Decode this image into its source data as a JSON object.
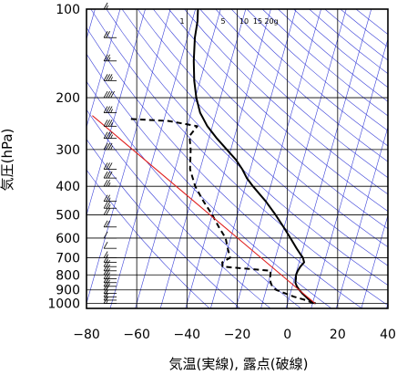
{
  "chart_data": {
    "type": "line",
    "diagram": "skew-t log-p",
    "xlabel": "気温(実線), 露点(破線)",
    "ylabel": "気圧(hPa)",
    "xlim": [
      -80,
      40
    ],
    "ylim": [
      1040,
      100
    ],
    "y_scale": "log",
    "x_ticks": [
      "−80",
      "−60",
      "−40",
      "−20",
      "0",
      "20",
      "40"
    ],
    "y_ticks": [
      "100",
      "200",
      "300",
      "400",
      "500",
      "600",
      "700",
      "800",
      "900",
      "1000"
    ],
    "mixing_ratio_labels": [
      "1",
      "5",
      "10",
      "15",
      "20g"
    ],
    "grid": true,
    "series": [
      {
        "key": "temperature",
        "style": "solid",
        "color": "#000000",
        "points": [
          {
            "p": 1000,
            "t": 11.2
          },
          {
            "p": 990,
            "t": 9.6
          },
          {
            "p": 975,
            "t": 8.4
          },
          {
            "p": 950,
            "t": 6.6
          },
          {
            "p": 925,
            "t": 4.8
          },
          {
            "p": 900,
            "t": 3.2
          },
          {
            "p": 875,
            "t": 1.8
          },
          {
            "p": 850,
            "t": 0.8
          },
          {
            "p": 825,
            "t": 0.6
          },
          {
            "p": 800,
            "t": 0.2
          },
          {
            "p": 775,
            "t": 0.4
          },
          {
            "p": 750,
            "t": 1.0
          },
          {
            "p": 725,
            "t": 2.0
          },
          {
            "p": 700,
            "t": 1.0
          },
          {
            "p": 675,
            "t": -0.8
          },
          {
            "p": 650,
            "t": -2.6
          },
          {
            "p": 600,
            "t": -6.2
          },
          {
            "p": 550,
            "t": -10.2
          },
          {
            "p": 500,
            "t": -14.8
          },
          {
            "p": 450,
            "t": -20.2
          },
          {
            "p": 400,
            "t": -27.0
          },
          {
            "p": 375,
            "t": -30.4
          },
          {
            "p": 350,
            "t": -33.2
          },
          {
            "p": 325,
            "t": -36.8
          },
          {
            "p": 300,
            "t": -41.6
          },
          {
            "p": 275,
            "t": -46.8
          },
          {
            "p": 250,
            "t": -52.0
          },
          {
            "p": 225,
            "t": -56.4
          },
          {
            "p": 200,
            "t": -59.6
          },
          {
            "p": 175,
            "t": -62.4
          },
          {
            "p": 150,
            "t": -64.8
          },
          {
            "p": 125,
            "t": -67.0
          },
          {
            "p": 110,
            "t": -67.8
          },
          {
            "p": 100,
            "t": -69.0
          }
        ]
      },
      {
        "key": "dewpoint",
        "style": "dashed",
        "color": "#000000",
        "points": [
          {
            "p": 1000,
            "t": 10.4
          },
          {
            "p": 975,
            "t": 7.0
          },
          {
            "p": 950,
            "t": 2.0
          },
          {
            "p": 925,
            "t": -2.0
          },
          {
            "p": 900,
            "t": -6.0
          },
          {
            "p": 875,
            "t": -8.0
          },
          {
            "p": 850,
            "t": -9.0
          },
          {
            "p": 825,
            "t": -9.8
          },
          {
            "p": 800,
            "t": -10.0
          },
          {
            "p": 775,
            "t": -10.4
          },
          {
            "p": 750,
            "t": -30.0
          },
          {
            "p": 725,
            "t": -30.6
          },
          {
            "p": 700,
            "t": -28.0
          },
          {
            "p": 650,
            "t": -30.0
          },
          {
            "p": 600,
            "t": -32.0
          },
          {
            "p": 550,
            "t": -36.0
          },
          {
            "p": 500,
            "t": -40.0
          },
          {
            "p": 450,
            "t": -45.0
          },
          {
            "p": 400,
            "t": -50.0
          },
          {
            "p": 350,
            "t": -54.0
          },
          {
            "p": 300,
            "t": -56.0
          },
          {
            "p": 270,
            "t": -58.0
          },
          {
            "p": 250,
            "t": -56.0
          },
          {
            "p": 240,
            "t": -68.0
          },
          {
            "p": 236,
            "t": -84.0
          }
        ]
      },
      {
        "key": "reference",
        "style": "solid",
        "color": "#e02020",
        "points": [
          {
            "p": 1000,
            "t": 11.0
          },
          {
            "p": 230,
            "t": -99.0
          }
        ]
      }
    ],
    "wind_barbs": {
      "t_position": -68.0,
      "levels": [
        {
          "p": 1000,
          "speed": 15,
          "dir": 270
        },
        {
          "p": 975,
          "speed": 15,
          "dir": 270
        },
        {
          "p": 950,
          "speed": 15,
          "dir": 270
        },
        {
          "p": 925,
          "speed": 15,
          "dir": 270
        },
        {
          "p": 900,
          "speed": 20,
          "dir": 270
        },
        {
          "p": 875,
          "speed": 20,
          "dir": 270
        },
        {
          "p": 850,
          "speed": 20,
          "dir": 270
        },
        {
          "p": 825,
          "speed": 20,
          "dir": 270
        },
        {
          "p": 800,
          "speed": 20,
          "dir": 270
        },
        {
          "p": 775,
          "speed": 20,
          "dir": 270
        },
        {
          "p": 750,
          "speed": 20,
          "dir": 270
        },
        {
          "p": 725,
          "speed": 15,
          "dir": 270
        },
        {
          "p": 700,
          "speed": 15,
          "dir": 270
        },
        {
          "p": 650,
          "speed": 10,
          "dir": 270
        },
        {
          "p": 600,
          "speed": 10,
          "dir": 270
        },
        {
          "p": 550,
          "speed": 20,
          "dir": 270
        },
        {
          "p": 500,
          "speed": 20,
          "dir": 270
        },
        {
          "p": 475,
          "speed": 25,
          "dir": 270
        },
        {
          "p": 450,
          "speed": 25,
          "dir": 270
        },
        {
          "p": 400,
          "speed": 25,
          "dir": 270
        },
        {
          "p": 375,
          "speed": 30,
          "dir": 270
        },
        {
          "p": 350,
          "speed": 30,
          "dir": 270
        },
        {
          "p": 300,
          "speed": 35,
          "dir": 270
        },
        {
          "p": 275,
          "speed": 35,
          "dir": 270
        },
        {
          "p": 250,
          "speed": 35,
          "dir": 270
        },
        {
          "p": 225,
          "speed": 35,
          "dir": 270
        },
        {
          "p": 200,
          "speed": 40,
          "dir": 270
        },
        {
          "p": 175,
          "speed": 35,
          "dir": 270
        },
        {
          "p": 150,
          "speed": 25,
          "dir": 270
        },
        {
          "p": 125,
          "speed": 20,
          "dir": 270
        },
        {
          "p": 100,
          "speed": 15,
          "dir": 270
        }
      ]
    }
  },
  "colors": {
    "background": "#ffffff",
    "isotherm": "#3a40d8",
    "grid": "#000000",
    "reference_line": "#e02020"
  }
}
